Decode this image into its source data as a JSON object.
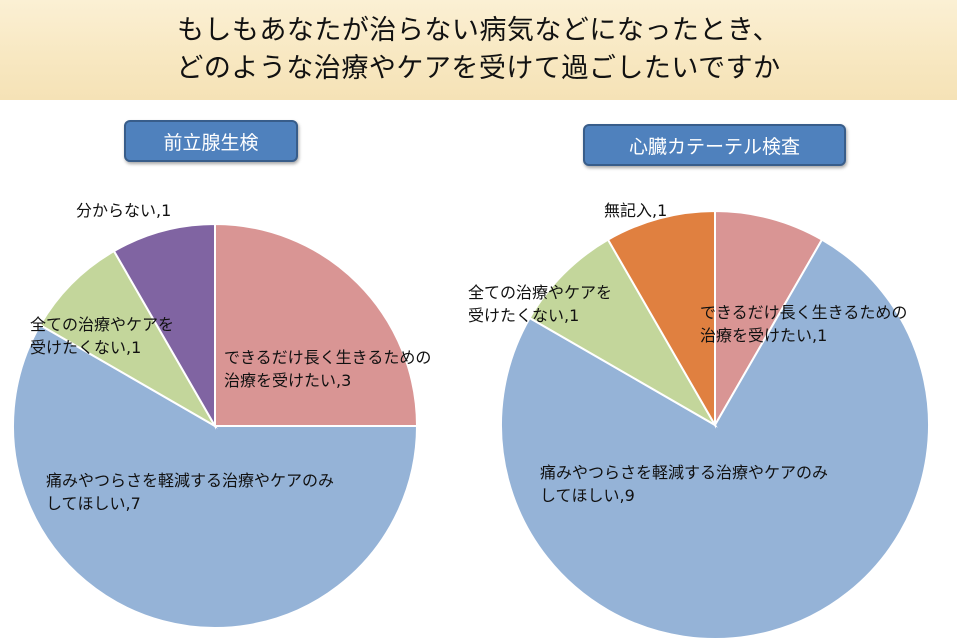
{
  "title": {
    "line1": "もしもあなたが治らない病気などになったとき、",
    "line2": "どのような治療やケアを受けて過ごしたいですか"
  },
  "chart_data": [
    {
      "type": "pie",
      "title": "前立腺生検",
      "slices": [
        {
          "label_lines": [
            "できるだけ長く生きるための",
            "治療を受けたい,3"
          ],
          "value": 3,
          "color": "#d99594"
        },
        {
          "label_lines": [
            "痛みやつらさを軽減する治療やケアのみ",
            "してほしい,7"
          ],
          "value": 7,
          "color": "#95b3d7"
        },
        {
          "label_lines": [
            "全ての治療やケアを",
            "受けたくない,1"
          ],
          "value": 1,
          "color": "#c3d69b"
        },
        {
          "label_lines": [
            "分からない,1"
          ],
          "value": 1,
          "color": "#8064a2"
        }
      ]
    },
    {
      "type": "pie",
      "title": "心臓カテーテル検査",
      "slices": [
        {
          "label_lines": [
            "できるだけ長く生きるための",
            "治療を受けたい,1"
          ],
          "value": 1,
          "color": "#d99594"
        },
        {
          "label_lines": [
            "痛みやつらさを軽減する治療やケアのみ",
            "してほしい,9"
          ],
          "value": 9,
          "color": "#95b3d7"
        },
        {
          "label_lines": [
            "全ての治療やケアを",
            "受けたくない,1"
          ],
          "value": 1,
          "color": "#c3d69b"
        },
        {
          "label_lines": [
            "無記入,1"
          ],
          "value": 1,
          "color": "#e08040"
        }
      ]
    }
  ]
}
